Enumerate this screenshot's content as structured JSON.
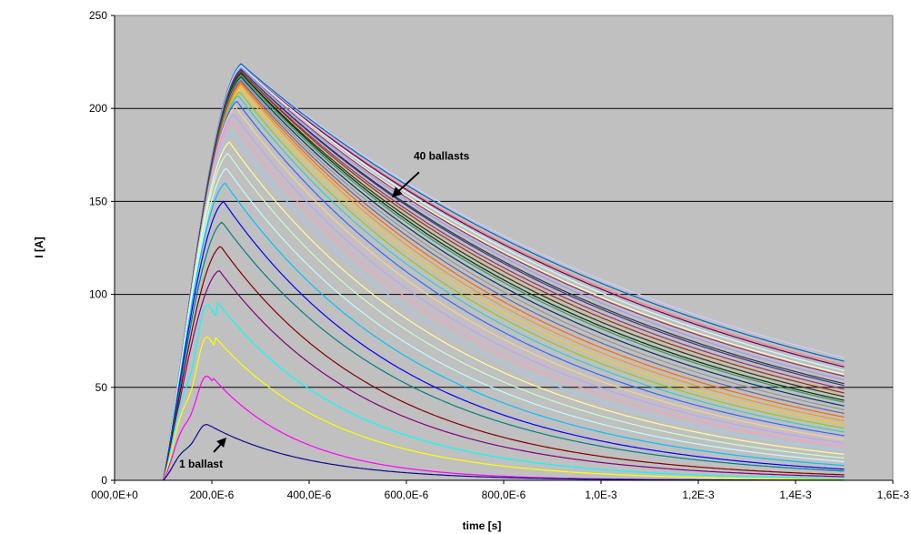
{
  "chart_data": {
    "type": "line",
    "xlabel": "time [s]",
    "ylabel": "I [A]",
    "xlim": [
      0,
      0.0016
    ],
    "ylim": [
      0,
      250
    ],
    "x_tick_values": [
      0,
      0.0002,
      0.0004,
      0.0006,
      0.0008,
      0.001,
      0.0012,
      0.0014,
      0.0016
    ],
    "x_tick_labels": [
      "000,0E+0",
      "200,0E-6",
      "400,0E-6",
      "600,0E-6",
      "800,0E-6",
      "1,0E-3",
      "1,2E-3",
      "1,4E-3",
      "1,6E-3"
    ],
    "y_tick_values": [
      0,
      50,
      100,
      150,
      200,
      250
    ],
    "y_tick_labels": [
      "0",
      "50",
      "100",
      "150",
      "200",
      "250"
    ],
    "grid": {
      "horizontal": true,
      "vertical": false
    },
    "plot_background": "#c0c0c0",
    "legend": "none",
    "curve_model": {
      "description_note": "40 current waveforms, one per ballast count n = 1..40; onset at t0, rise to peak near tpeak, then decay toward the value at end time",
      "t0": 0.0001,
      "t_end": 0.0015,
      "series_count": 40,
      "peak_current_by_n": [
        29,
        55,
        77,
        96,
        113,
        126,
        139,
        150,
        160,
        168,
        176,
        182,
        188,
        193,
        197,
        201,
        204,
        207,
        209,
        211,
        213,
        214,
        215,
        216,
        217,
        218,
        219,
        219,
        220,
        220,
        221,
        221,
        222,
        222,
        222,
        223,
        223,
        223,
        224,
        224
      ],
      "end_current_by_n": [
        0,
        0,
        0.5,
        1,
        2,
        3,
        5,
        6,
        8,
        10,
        12,
        14,
        16,
        18,
        20,
        22,
        24,
        26,
        28,
        30,
        32,
        34,
        36,
        38,
        40,
        42,
        43,
        45,
        47,
        49,
        51,
        52,
        54,
        56,
        57,
        59,
        61,
        62,
        64,
        66
      ]
    },
    "series_colors": [
      "#0a0a8c",
      "#ff00ff",
      "#ffff00",
      "#00ffff",
      "#800080",
      "#800000",
      "#008080",
      "#0000ff",
      "#00c0ff",
      "#c0ffff",
      "#ccffcc",
      "#ffff99",
      "#99ccff",
      "#ff99cc",
      "#cc99ff",
      "#ffcc99",
      "#3366ff",
      "#33cccc",
      "#99cc00",
      "#ffcc00",
      "#ff9900",
      "#ff6600",
      "#666699",
      "#969696",
      "#003366",
      "#339966",
      "#003300",
      "#333300",
      "#993300",
      "#993366",
      "#333399",
      "#333333",
      "#9999ff",
      "#993366",
      "#ffffcc",
      "#ccffff",
      "#660066",
      "#ff8080",
      "#0066cc",
      "#ccccff"
    ],
    "annotations": [
      {
        "text": "40 ballasts",
        "points_to": {
          "x": 0.00057,
          "y": 152
        }
      },
      {
        "text": "1 ballast",
        "points_to": {
          "x": 0.00023,
          "y": 23
        }
      }
    ]
  }
}
